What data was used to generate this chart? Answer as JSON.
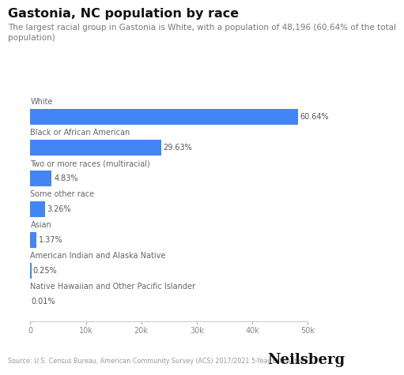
{
  "title": "Gastonia, NC population by race",
  "subtitle": "The largest racial group in Gastonia is White, with a population of 48,196 (60.64% of the total\npopulation)",
  "categories": [
    "White",
    "Black or African American",
    "Two or more races (multiracial)",
    "Some other race",
    "Asian",
    "American Indian and Alaska Native",
    "Native Hawaiian and Other Pacific Islander"
  ],
  "values": [
    48196,
    23549,
    3840,
    2592,
    1089,
    199,
    8
  ],
  "percentages": [
    "60.64%",
    "29.63%",
    "4.83%",
    "3.26%",
    "1.37%",
    "0.25%",
    "0.01%"
  ],
  "bar_color": "#4285f4",
  "bar_height": 0.52,
  "xlim": [
    0,
    50000
  ],
  "xticks": [
    0,
    10000,
    20000,
    30000,
    40000,
    50000
  ],
  "xtick_labels": [
    "0",
    "10k",
    "20k",
    "30k",
    "40k",
    "50k"
  ],
  "source_text": "Source: U.S. Census Bureau, American Community Survey (ACS) 2017/2021 5-Year Estimates",
  "brand_text": "Neilsberg",
  "background_color": "#ffffff",
  "title_fontsize": 11.5,
  "subtitle_fontsize": 7.5,
  "category_fontsize": 7,
  "pct_fontsize": 7,
  "tick_fontsize": 7,
  "source_fontsize": 5.8,
  "brand_fontsize": 13
}
